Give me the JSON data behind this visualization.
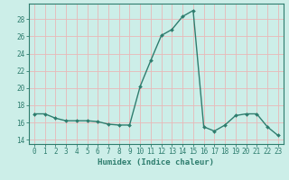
{
  "x": [
    0,
    1,
    2,
    3,
    4,
    5,
    6,
    7,
    8,
    9,
    10,
    11,
    12,
    13,
    14,
    15,
    16,
    17,
    18,
    19,
    20,
    21,
    22,
    23
  ],
  "y": [
    17.0,
    17.0,
    16.5,
    16.2,
    16.2,
    16.2,
    16.1,
    15.8,
    15.7,
    15.7,
    20.2,
    23.2,
    26.1,
    26.8,
    28.3,
    29.0,
    15.5,
    15.0,
    15.7,
    16.8,
    17.0,
    17.0,
    15.5,
    14.5
  ],
  "line_color": "#2e7d6e",
  "marker": "D",
  "marker_size": 2.0,
  "linewidth": 1.0,
  "bg_color": "#cceee8",
  "grid_color": "#e8b8b8",
  "ylabel_vals": [
    14,
    16,
    18,
    20,
    22,
    24,
    26,
    28
  ],
  "ylim": [
    13.5,
    29.8
  ],
  "xlim": [
    -0.5,
    23.5
  ],
  "xlabel": "Humidex (Indice chaleur)",
  "xlabel_fontsize": 6.5,
  "tick_fontsize": 5.5,
  "xtick_labels": [
    "0",
    "1",
    "2",
    "3",
    "4",
    "5",
    "6",
    "7",
    "8",
    "9",
    "10",
    "11",
    "12",
    "13",
    "14",
    "15",
    "16",
    "17",
    "18",
    "19",
    "20",
    "21",
    "22",
    "23"
  ]
}
